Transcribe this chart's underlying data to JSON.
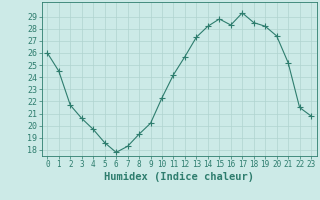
{
  "x": [
    0,
    1,
    2,
    3,
    4,
    5,
    6,
    7,
    8,
    9,
    10,
    11,
    12,
    13,
    14,
    15,
    16,
    17,
    18,
    19,
    20,
    21,
    22,
    23
  ],
  "y": [
    26.0,
    24.5,
    21.7,
    20.6,
    19.7,
    18.6,
    17.8,
    18.3,
    19.3,
    20.2,
    22.3,
    24.2,
    25.7,
    27.3,
    28.2,
    28.8,
    28.3,
    29.3,
    28.5,
    28.2,
    27.4,
    25.2,
    21.5,
    20.8
  ],
  "line_color": "#2e7d6e",
  "marker": "+",
  "marker_size": 4,
  "bg_color": "#cceae7",
  "grid_color": "#b0d4d0",
  "axis_color": "#2e7d6e",
  "tick_color": "#2e7d6e",
  "xlabel": "Humidex (Indice chaleur)",
  "ylim": [
    17.5,
    30.2
  ],
  "xlim": [
    -0.5,
    23.5
  ],
  "yticks": [
    18,
    19,
    20,
    21,
    22,
    23,
    24,
    25,
    26,
    27,
    28,
    29
  ],
  "xticks": [
    0,
    1,
    2,
    3,
    4,
    5,
    6,
    7,
    8,
    9,
    10,
    11,
    12,
    13,
    14,
    15,
    16,
    17,
    18,
    19,
    20,
    21,
    22,
    23
  ]
}
